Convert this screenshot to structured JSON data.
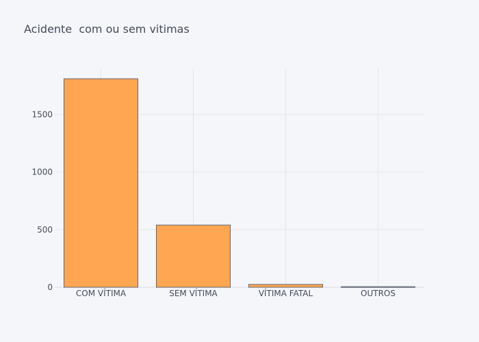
{
  "chart_data": {
    "type": "bar",
    "title": "Acidente  com ou sem vitimas",
    "categories": [
      "COM VÍTIMA",
      "SEM VÍTIMA",
      "VÍTIMA FATAL",
      "OUTROS"
    ],
    "values": [
      1810,
      540,
      25,
      5
    ],
    "ylim": [
      0,
      1900
    ],
    "yticks": [
      0,
      500,
      1000,
      1500
    ],
    "ytick_labels": [
      "0",
      "500",
      "1000",
      "1500"
    ],
    "xlabel": "",
    "ylabel": "",
    "grid": true,
    "colors": {
      "bar_fill": "#ffa652",
      "bar_stroke": "#5f6774",
      "grid": "#e3e6ee",
      "background": "#f5f6fa",
      "text": "#444a57"
    }
  }
}
